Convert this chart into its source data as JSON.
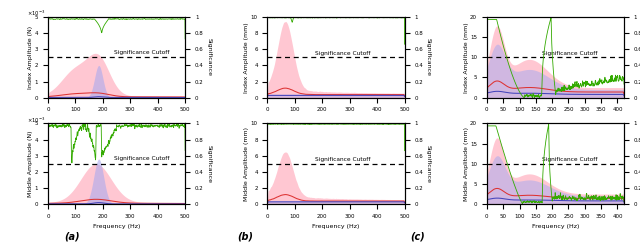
{
  "fig_width": 6.4,
  "fig_height": 2.43,
  "dpi": 100,
  "col0": {
    "xlim": 500,
    "ylim_l": 0.005,
    "ylim_r": 1.0,
    "cutoff": 0.0025,
    "xticks": [
      0,
      100,
      200,
      300,
      400,
      500
    ],
    "yticks_l": [
      0,
      0.001,
      0.002,
      0.003,
      0.004,
      0.005
    ],
    "ytick_labels_l": [
      "0",
      "1",
      "2",
      "3",
      "4",
      "5"
    ],
    "yticks_r": [
      0,
      0.2,
      0.4,
      0.6,
      0.8,
      1.0
    ],
    "ytick_labels_r": [
      "0",
      "0.2",
      "0.4",
      "0.6",
      "0.8",
      "1"
    ],
    "rows": [
      {
        "ylabel_l": "Index Amplitude (N)",
        "ylabel_r": "Significance",
        "pink_peak": 100,
        "pink_peak2": 185,
        "pink_amp": 0.0018,
        "blue_peak": 185,
        "blue_amp": 0.002,
        "green_dip": 195,
        "green_dip_val": 0.78,
        "green_noisy": false
      },
      {
        "ylabel_l": "Middle Amplitude (N)",
        "ylabel_r": "Significance",
        "pink_peak": 170,
        "pink_peak2": 170,
        "pink_amp": 0.0022,
        "blue_peak": 185,
        "blue_amp": 0.0028,
        "green_start_dip": 100,
        "green_end_dip": 250,
        "green_noisy": true
      }
    ]
  },
  "col1": {
    "xlim": 500,
    "ylim_l": 10,
    "ylim_r": 1.0,
    "cutoff": 5,
    "xticks": [
      0,
      100,
      200,
      300,
      400,
      500
    ],
    "yticks_l": [
      0,
      2,
      4,
      6,
      8,
      10
    ],
    "ytick_labels_l": [
      "0",
      "2",
      "4",
      "6",
      "8",
      "10"
    ],
    "yticks_r": [
      0,
      0.2,
      0.4,
      0.6,
      0.8,
      1.0
    ],
    "ytick_labels_r": [
      "0",
      "0.2",
      "0.4",
      "0.6",
      "0.8",
      "1"
    ],
    "rows": [
      {
        "ylabel_l": "Index Amplitude (mm)",
        "ylabel_r": "Significance",
        "pink_peak": 65,
        "pink_amp": 8.5,
        "green_flat": true,
        "green_dip_small": 90
      },
      {
        "ylabel_l": "Middle Amplitude (mm)",
        "ylabel_r": "Significance",
        "pink_peak": 65,
        "pink_amp": 5.5,
        "green_flat": true,
        "green_dip_small": 90
      }
    ]
  },
  "col2": {
    "xlim": 420,
    "ylim_l": 20,
    "ylim_r": 1.0,
    "cutoff": 10,
    "xticks": [
      0,
      50,
      100,
      150,
      200,
      250,
      300,
      350,
      400
    ],
    "yticks_l": [
      0,
      5,
      10,
      15,
      20
    ],
    "ytick_labels_l": [
      "0",
      "5",
      "10",
      "15",
      "20"
    ],
    "yticks_r": [
      0,
      0.2,
      0.4,
      0.6,
      0.8,
      1.0
    ],
    "ytick_labels_r": [
      "0",
      "0.2",
      "0.4",
      "0.6",
      "0.8",
      "1"
    ],
    "rows": [
      {
        "ylabel_l": "Index Amplitude (mm)",
        "ylabel_r": "Significance",
        "pink_peak1": 30,
        "pink_amp1": 14,
        "pink_peak2": 130,
        "pink_amp2": 7,
        "blue_peak1": 30,
        "blue_amp1": 10,
        "blue_peak2": 130,
        "blue_amp2": 5,
        "green_type": "valley_then_peak"
      },
      {
        "ylabel_l": "Middle Amplitude (mm)",
        "ylabel_r": "Significance",
        "pink_peak1": 30,
        "pink_amp1": 13,
        "pink_peak2": 130,
        "pink_amp2": 5,
        "blue_peak1": 30,
        "blue_amp1": 9,
        "blue_peak2": 130,
        "blue_amp2": 4,
        "green_type": "valley_then_peak2"
      }
    ]
  }
}
